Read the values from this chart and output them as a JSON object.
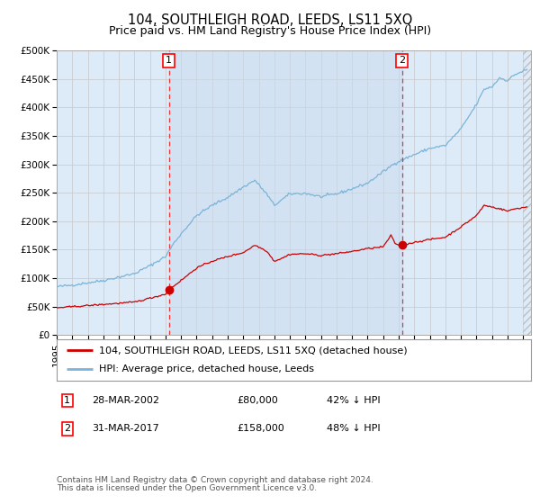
{
  "title": "104, SOUTHLEIGH ROAD, LEEDS, LS11 5XQ",
  "subtitle": "Price paid vs. HM Land Registry's House Price Index (HPI)",
  "legend_line1": "104, SOUTHLEIGH ROAD, LEEDS, LS11 5XQ (detached house)",
  "legend_line2": "HPI: Average price, detached house, Leeds",
  "footnote1": "Contains HM Land Registry data © Crown copyright and database right 2024.",
  "footnote2": "This data is licensed under the Open Government Licence v3.0.",
  "point1_date_str": "28-MAR-2002",
  "point1_price_str": "£80,000",
  "point1_pct_str": "42% ↓ HPI",
  "point1_t": 2002.22,
  "point1_price": 80000,
  "point2_date_str": "31-MAR-2017",
  "point2_price_str": "£158,000",
  "point2_pct_str": "48% ↓ HPI",
  "point2_t": 2017.22,
  "point2_price": 158000,
  "hpi_color": "#7ab4d8",
  "price_color": "#cc0000",
  "bg_color": "#ddeaf7",
  "plot_bg": "#ffffff",
  "grid_color": "#c8c8c8",
  "vline_color": "#ee3333",
  "hpi_anchors_t": [
    1995.0,
    1996.0,
    1997.0,
    1998.0,
    1999.0,
    2000.0,
    2001.0,
    2002.0,
    2002.5,
    2003.0,
    2004.0,
    2005.0,
    2006.0,
    2007.0,
    2007.75,
    2008.5,
    2009.0,
    2009.5,
    2010.0,
    2011.0,
    2012.0,
    2013.0,
    2014.0,
    2015.0,
    2016.0,
    2016.75,
    2017.25,
    2018.0,
    2019.0,
    2020.0,
    2021.0,
    2022.0,
    2022.5,
    2023.0,
    2023.5,
    2024.0,
    2024.5,
    2025.25
  ],
  "hpi_anchors_v": [
    85000,
    88000,
    92000,
    96000,
    102000,
    108000,
    122000,
    138000,
    160000,
    178000,
    210000,
    228000,
    242000,
    260000,
    272000,
    248000,
    228000,
    238000,
    248000,
    249000,
    243000,
    248000,
    257000,
    267000,
    287000,
    302000,
    308000,
    317000,
    328000,
    333000,
    362000,
    405000,
    432000,
    436000,
    452000,
    447000,
    458000,
    466000
  ],
  "price_anchors_t": [
    1995.0,
    1996.0,
    1997.0,
    1998.0,
    1999.0,
    2000.0,
    2001.0,
    2002.0,
    2002.22,
    2003.0,
    2004.0,
    2005.0,
    2006.0,
    2007.0,
    2007.75,
    2008.5,
    2009.0,
    2009.5,
    2010.0,
    2011.0,
    2012.0,
    2013.0,
    2014.0,
    2015.0,
    2016.0,
    2016.5,
    2016.75,
    2017.0,
    2017.22,
    2018.0,
    2019.0,
    2020.0,
    2021.0,
    2022.0,
    2022.5,
    2023.0,
    2023.5,
    2024.0,
    2024.5,
    2025.25
  ],
  "price_anchors_v": [
    48000,
    50000,
    52000,
    54000,
    56000,
    58000,
    65000,
    72000,
    80000,
    96000,
    118000,
    130000,
    138000,
    145000,
    158000,
    148000,
    130000,
    135000,
    142000,
    143000,
    140000,
    143000,
    147000,
    152000,
    155000,
    175000,
    162000,
    158000,
    158000,
    163000,
    168000,
    172000,
    190000,
    210000,
    228000,
    225000,
    222000,
    218000,
    222000,
    225000
  ],
  "ylim": [
    0,
    500000
  ],
  "xlim": [
    1995,
    2025.5
  ],
  "ytick_vals": [
    0,
    50000,
    100000,
    150000,
    200000,
    250000,
    300000,
    350000,
    400000,
    450000,
    500000
  ],
  "ytick_labels": [
    "£0",
    "£50K",
    "£100K",
    "£150K",
    "£200K",
    "£250K",
    "£300K",
    "£350K",
    "£400K",
    "£450K",
    "£500K"
  ],
  "xtick_years": [
    1995,
    1996,
    1997,
    1998,
    1999,
    2000,
    2001,
    2002,
    2003,
    2004,
    2005,
    2006,
    2007,
    2008,
    2009,
    2010,
    2011,
    2012,
    2013,
    2014,
    2015,
    2016,
    2017,
    2018,
    2019,
    2020,
    2021,
    2022,
    2023,
    2024,
    2025
  ],
  "title_fontsize": 10.5,
  "subtitle_fontsize": 9,
  "tick_fontsize": 7.5,
  "legend_fontsize": 8,
  "table_fontsize": 8,
  "footnote_fontsize": 6.5
}
